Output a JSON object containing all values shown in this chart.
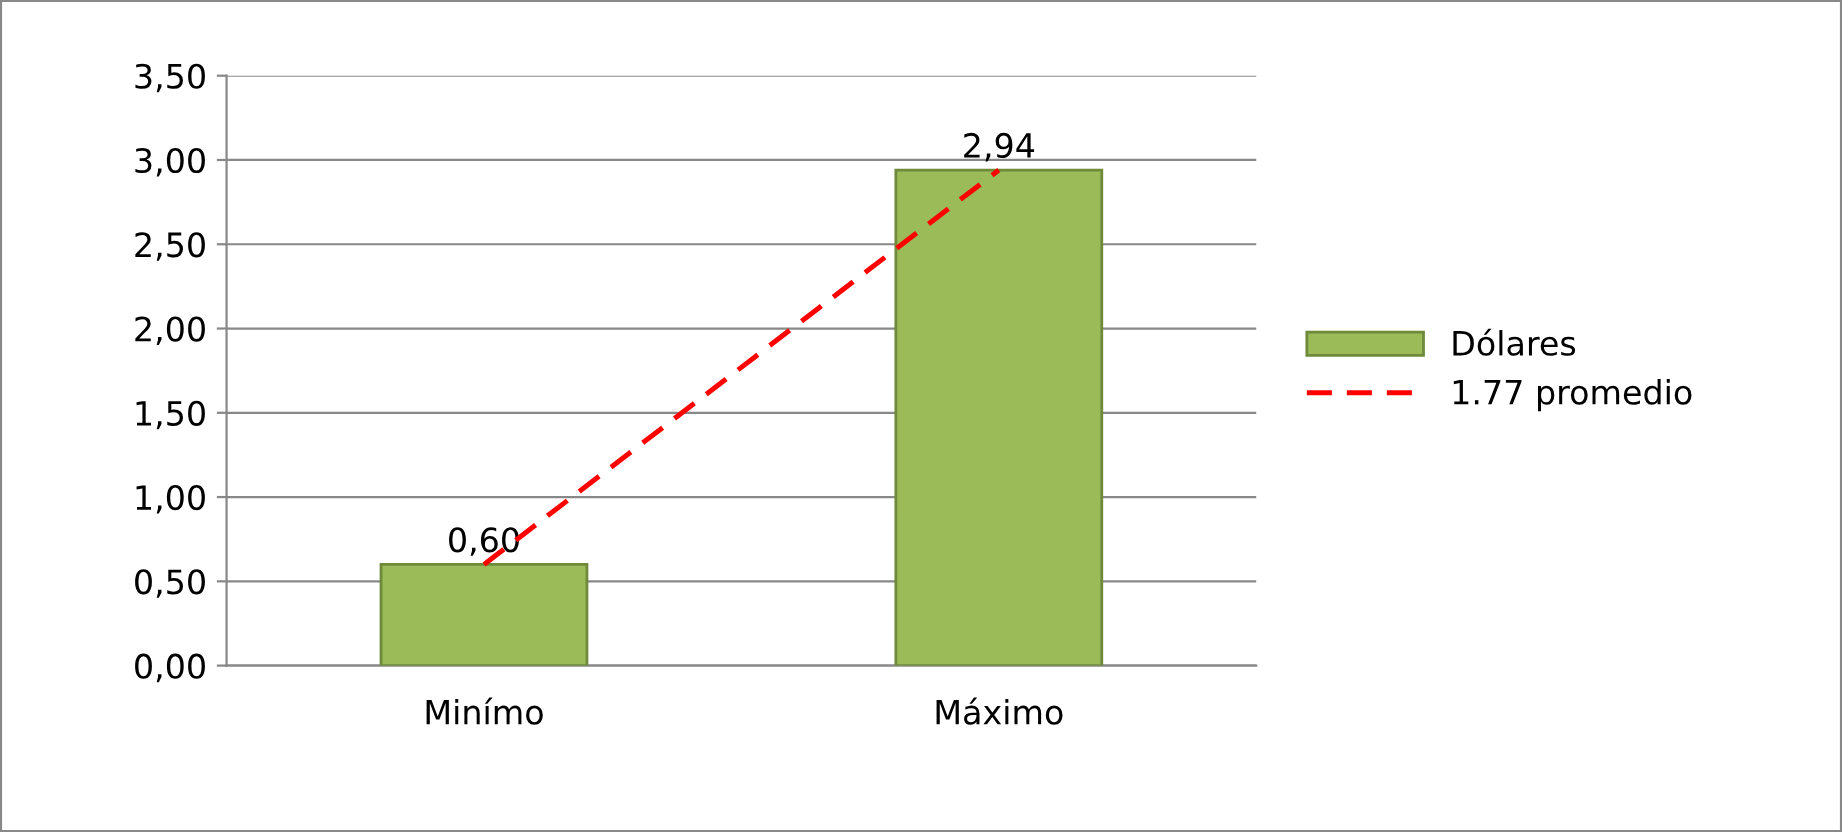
{
  "chart_data": {
    "type": "bar",
    "categories": [
      "Minímo",
      "Máximo"
    ],
    "series": [
      {
        "name": "Dólares",
        "color": "#9bbb59",
        "values": [
          0.6,
          2.94
        ],
        "value_labels": [
          "0,60",
          "2,94"
        ]
      },
      {
        "name": "1.77 promedio",
        "type": "line",
        "color": "#ff0000",
        "line_style": "dashed",
        "marker": "none",
        "values": [
          0.6,
          2.94
        ]
      }
    ],
    "ylim": [
      0,
      3.5
    ],
    "yticks": [
      {
        "value": 0,
        "label": "0,00"
      },
      {
        "value": 0.5,
        "label": "0,50"
      },
      {
        "value": 1.0,
        "label": "1,00"
      },
      {
        "value": 1.5,
        "label": "1,50"
      },
      {
        "value": 2.0,
        "label": "2,00"
      },
      {
        "value": 2.5,
        "label": "2,50"
      },
      {
        "value": 3.0,
        "label": "3,00"
      },
      {
        "value": 3.5,
        "label": "3,50"
      }
    ],
    "grid": "y",
    "legend": "right"
  }
}
